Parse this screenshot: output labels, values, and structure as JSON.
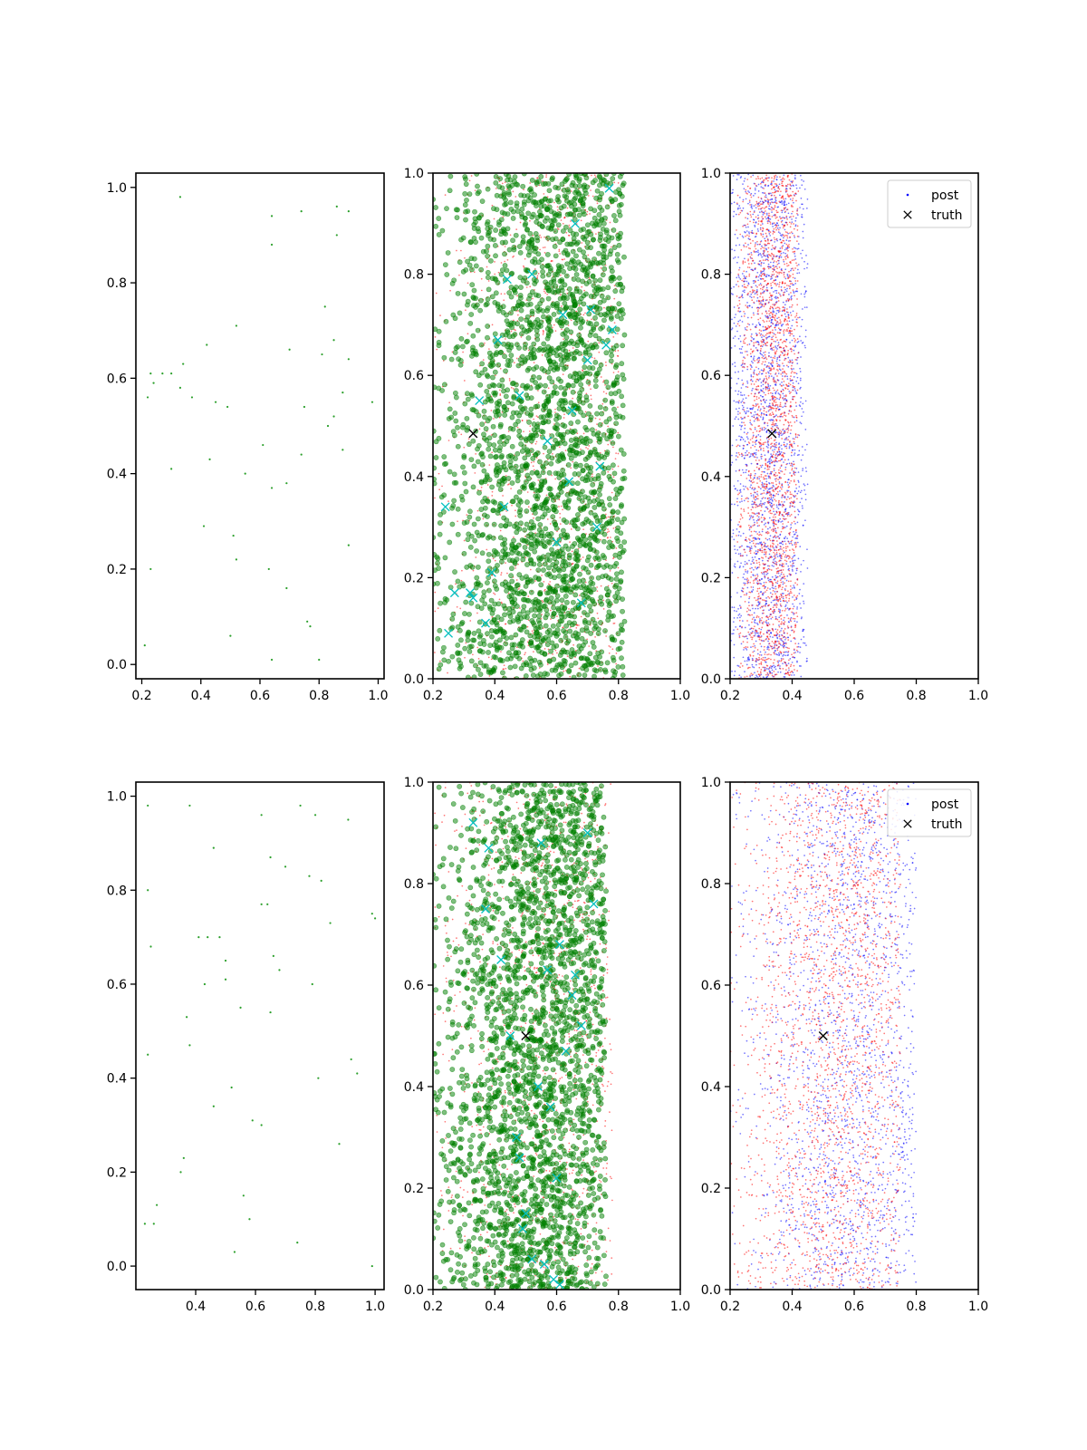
{
  "chart_data": [
    {
      "type": "scatter",
      "panel": "row1-col1",
      "xlim": [
        0.18,
        1.02
      ],
      "ylim": [
        -0.03,
        1.03
      ],
      "xticks": [
        "0.2",
        "0.4",
        "0.6",
        "0.8",
        "1.0"
      ],
      "yticks": [
        "0.0",
        "0.2",
        "0.4",
        "0.6",
        "0.8",
        "1.0"
      ],
      "grid": false,
      "series": [
        {
          "color": "#2ca02c",
          "marker": "point",
          "approx_count": 48,
          "x": [
            0.33,
            0.64,
            0.74,
            0.86,
            0.9,
            0.64,
            0.86,
            0.82,
            0.52,
            0.85,
            0.42,
            0.7,
            0.23,
            0.27,
            0.3,
            0.34,
            0.24,
            0.33,
            0.37,
            0.45,
            0.49,
            0.81,
            0.9,
            0.88,
            0.98,
            0.75,
            0.83,
            0.85,
            0.22,
            0.61,
            0.74,
            0.88,
            0.43,
            0.3,
            0.55,
            0.64,
            0.69,
            0.41,
            0.51,
            0.9,
            0.52,
            0.23,
            0.63,
            0.69,
            0.76,
            0.77,
            0.21,
            0.5,
            0.64,
            0.8
          ],
          "y": [
            0.98,
            0.94,
            0.95,
            0.96,
            0.95,
            0.88,
            0.9,
            0.75,
            0.71,
            0.68,
            0.67,
            0.66,
            0.61,
            0.61,
            0.61,
            0.63,
            0.59,
            0.58,
            0.56,
            0.55,
            0.54,
            0.65,
            0.64,
            0.57,
            0.55,
            0.54,
            0.5,
            0.52,
            0.56,
            0.46,
            0.44,
            0.45,
            0.43,
            0.41,
            0.4,
            0.37,
            0.38,
            0.29,
            0.27,
            0.25,
            0.22,
            0.2,
            0.2,
            0.16,
            0.09,
            0.08,
            0.04,
            0.06,
            0.01,
            0.01
          ]
        }
      ]
    },
    {
      "type": "scatter",
      "panel": "row1-col2",
      "xlim": [
        0.2,
        1.0
      ],
      "ylim": [
        0.0,
        1.0
      ],
      "xticks": [
        "0.2",
        "0.4",
        "0.6",
        "0.8",
        "1.0"
      ],
      "yticks": [
        "0.0",
        "0.2",
        "0.4",
        "0.6",
        "0.8",
        "1.0"
      ],
      "grid": false,
      "series": [
        {
          "color": "#ff0000",
          "marker": "dot",
          "approx_count": 1200,
          "x_range": [
            0.2,
            0.8
          ],
          "x_center": 0.62
        },
        {
          "color": "#008000",
          "marker": "circle",
          "approx_count": 2600,
          "x_range": [
            0.2,
            0.82
          ],
          "x_center": 0.6,
          "center_shift_per_y": 0.06
        },
        {
          "color": "#00bfbf",
          "marker": "x",
          "x": [
            0.24,
            0.27,
            0.32,
            0.33,
            0.25,
            0.37,
            0.39,
            0.41,
            0.35,
            0.43,
            0.48,
            0.52,
            0.44,
            0.57,
            0.6,
            0.62,
            0.64,
            0.65,
            0.66,
            0.68,
            0.7,
            0.71,
            0.73,
            0.74,
            0.76,
            0.77,
            0.78
          ],
          "y": [
            0.34,
            0.17,
            0.17,
            0.16,
            0.09,
            0.11,
            0.21,
            0.67,
            0.55,
            0.34,
            0.56,
            0.8,
            0.79,
            0.47,
            0.27,
            0.72,
            0.39,
            0.53,
            0.9,
            0.15,
            0.63,
            0.73,
            0.3,
            0.42,
            0.66,
            0.97,
            0.69
          ]
        }
      ],
      "truth": {
        "x": 0.33,
        "y": 0.485,
        "color": "#000000",
        "marker": "x"
      }
    },
    {
      "type": "scatter",
      "panel": "row1-col3",
      "xlim": [
        0.2,
        1.0
      ],
      "ylim": [
        0.0,
        1.0
      ],
      "xticks": [
        "0.2",
        "0.4",
        "0.6",
        "0.8",
        "1.0"
      ],
      "yticks": [
        "0.0",
        "0.2",
        "0.4",
        "0.6",
        "0.8",
        "1.0"
      ],
      "grid": false,
      "legend": {
        "placement": "upper-right",
        "entries": [
          "post",
          "truth"
        ]
      },
      "series": [
        {
          "name": "post",
          "color": "#0000ff",
          "marker": "dot",
          "approx_count": 2200,
          "x_range": [
            0.2,
            0.45
          ],
          "x_center": 0.33
        },
        {
          "color": "#ff0000",
          "marker": "dot",
          "approx_count": 2200,
          "x_range": [
            0.22,
            0.42
          ],
          "x_center": 0.34
        }
      ],
      "truth": {
        "name": "truth",
        "x": 0.335,
        "y": 0.485,
        "color": "#000000",
        "marker": "x"
      }
    },
    {
      "type": "scatter",
      "panel": "row2-col1",
      "xlim": [
        0.2,
        1.03
      ],
      "ylim": [
        -0.05,
        1.03
      ],
      "xticks": [
        "0.4",
        "0.6",
        "0.8",
        "1.0"
      ],
      "yticks": [
        "0.0",
        "0.2",
        "0.4",
        "0.6",
        "0.8",
        "1.0"
      ],
      "grid": false,
      "series": [
        {
          "color": "#2ca02c",
          "marker": "point",
          "approx_count": 50,
          "x": [
            0.24,
            0.38,
            0.62,
            0.75,
            0.8,
            0.91,
            0.46,
            0.65,
            0.7,
            0.24,
            0.78,
            0.82,
            0.62,
            0.64,
            0.25,
            0.41,
            0.44,
            0.48,
            0.5,
            0.66,
            0.68,
            0.85,
            0.43,
            0.5,
            0.79,
            0.37,
            0.55,
            0.65,
            0.38,
            0.24,
            0.92,
            0.94,
            0.81,
            0.52,
            0.46,
            0.59,
            0.62,
            0.88,
            0.36,
            0.35,
            0.56,
            0.58,
            0.27,
            0.23,
            0.26,
            0.74,
            0.53,
            0.99,
            1.0,
            0.99
          ],
          "y": [
            0.98,
            0.98,
            0.96,
            0.98,
            0.96,
            0.95,
            0.89,
            0.87,
            0.85,
            0.8,
            0.83,
            0.82,
            0.77,
            0.77,
            0.68,
            0.7,
            0.7,
            0.7,
            0.65,
            0.66,
            0.63,
            0.73,
            0.6,
            0.61,
            0.6,
            0.53,
            0.55,
            0.54,
            0.47,
            0.45,
            0.44,
            0.41,
            0.4,
            0.38,
            0.34,
            0.31,
            0.3,
            0.26,
            0.23,
            0.2,
            0.15,
            0.1,
            0.13,
            0.09,
            0.09,
            0.05,
            0.03,
            0.0,
            0.74,
            0.75
          ]
        }
      ]
    },
    {
      "type": "scatter",
      "panel": "row2-col2",
      "xlim": [
        0.2,
        1.0
      ],
      "ylim": [
        0.0,
        1.0
      ],
      "xticks": [
        "0.2",
        "0.4",
        "0.6",
        "0.8",
        "1.0"
      ],
      "yticks": [
        "0.0",
        "0.2",
        "0.4",
        "0.6",
        "0.8",
        "1.0"
      ],
      "grid": false,
      "series": [
        {
          "color": "#ff0000",
          "marker": "dot",
          "approx_count": 1200,
          "x_range": [
            0.2,
            0.78
          ],
          "x_center": 0.58
        },
        {
          "color": "#008000",
          "marker": "circle",
          "approx_count": 2600,
          "x_range": [
            0.2,
            0.76
          ],
          "x_center": 0.55,
          "center_shift_per_y": 0.1
        },
        {
          "color": "#00bfbf",
          "marker": "x",
          "x": [
            0.33,
            0.38,
            0.37,
            0.42,
            0.45,
            0.47,
            0.48,
            0.5,
            0.52,
            0.55,
            0.57,
            0.58,
            0.6,
            0.61,
            0.63,
            0.65,
            0.66,
            0.68,
            0.7,
            0.72,
            0.54,
            0.49,
            0.56,
            0.59,
            0.61
          ],
          "y": [
            0.92,
            0.87,
            0.75,
            0.65,
            0.5,
            0.3,
            0.26,
            0.15,
            0.06,
            0.88,
            0.63,
            0.36,
            0.22,
            0.68,
            0.47,
            0.58,
            0.62,
            0.52,
            0.9,
            0.76,
            0.4,
            0.12,
            0.05,
            0.02,
            0.01
          ]
        }
      ],
      "truth": {
        "x": 0.5,
        "y": 0.5,
        "color": "#000000",
        "marker": "x"
      }
    },
    {
      "type": "scatter",
      "panel": "row2-col3",
      "xlim": [
        0.2,
        1.0
      ],
      "ylim": [
        0.0,
        1.0
      ],
      "xticks": [
        "0.2",
        "0.4",
        "0.6",
        "0.8",
        "1.0"
      ],
      "yticks": [
        "0.0",
        "0.2",
        "0.4",
        "0.6",
        "0.8",
        "1.0"
      ],
      "grid": false,
      "legend": {
        "placement": "upper-right",
        "entries": [
          "post",
          "truth"
        ]
      },
      "series": [
        {
          "name": "post",
          "color": "#0000ff",
          "marker": "dot",
          "approx_count": 2000,
          "x_range": [
            0.2,
            0.8
          ],
          "x_center": 0.6
        },
        {
          "color": "#ff0000",
          "marker": "dot",
          "approx_count": 2200,
          "x_range": [
            0.2,
            0.75
          ],
          "x_center": 0.55
        }
      ],
      "truth": {
        "name": "truth",
        "x": 0.5,
        "y": 0.5,
        "color": "#000000",
        "marker": "x"
      }
    }
  ]
}
